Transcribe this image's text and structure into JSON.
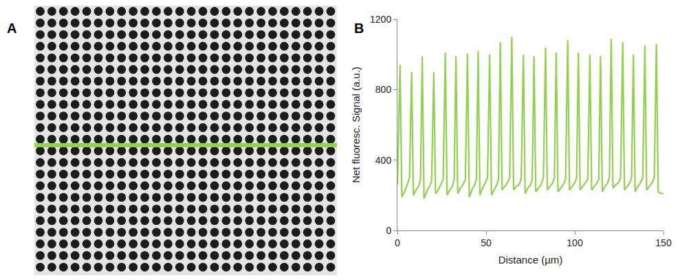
{
  "panel_labels": [
    "A",
    "B"
  ],
  "chart_data": {
    "type": "line",
    "x": [
      0,
      1.5,
      2.5,
      4,
      5.5,
      6.8,
      8,
      9,
      10.5,
      12,
      13,
      14,
      15,
      16.5,
      18,
      19.3,
      20.5,
      21.5,
      23,
      24.5,
      25.8,
      27,
      28,
      29.5,
      31,
      32,
      33,
      34,
      35.5,
      37,
      38.3,
      39.5,
      40.5,
      42,
      43.5,
      44.5,
      45.5,
      46.5,
      48,
      49.5,
      50.8,
      52,
      53,
      54.5,
      56,
      57,
      58,
      59,
      60.5,
      62,
      63.3,
      64.5,
      65.5,
      67,
      68.5,
      69.8,
      71,
      72,
      73.5,
      75,
      76,
      77,
      78,
      79.5,
      81,
      82.3,
      83.5,
      84.5,
      86,
      87.5,
      88.5,
      89.5,
      90.5,
      92,
      93.5,
      94.8,
      96,
      97,
      98.5,
      100,
      101,
      102,
      103,
      104.5,
      106,
      107.3,
      108.5,
      109.5,
      111,
      112.5,
      113.5,
      114.5,
      115.5,
      117,
      118.5,
      119.5,
      120.5,
      121.5,
      123,
      124.5,
      125.8,
      127,
      128,
      129.5,
      131,
      132,
      133,
      134,
      135.5,
      137,
      138.3,
      139.5,
      140.5,
      142,
      143.5,
      144.8,
      146,
      147,
      148.5,
      150
    ],
    "values": [
      260,
      940,
      190,
      220,
      260,
      300,
      900,
      200,
      230,
      250,
      290,
      990,
      180,
      220,
      250,
      280,
      900,
      210,
      230,
      260,
      290,
      1010,
      200,
      230,
      250,
      290,
      990,
      210,
      240,
      260,
      290,
      1005,
      190,
      230,
      260,
      290,
      1020,
      200,
      240,
      270,
      300,
      1000,
      200,
      230,
      260,
      290,
      1070,
      230,
      250,
      270,
      300,
      1100,
      230,
      250,
      260,
      290,
      1000,
      210,
      240,
      260,
      290,
      990,
      220,
      240,
      260,
      300,
      1040,
      230,
      250,
      270,
      300,
      1010,
      220,
      240,
      260,
      290,
      1080,
      230,
      250,
      270,
      300,
      1010,
      230,
      250,
      270,
      290,
      1000,
      230,
      250,
      270,
      290,
      990,
      220,
      250,
      270,
      300,
      1090,
      240,
      260,
      270,
      300,
      1070,
      230,
      250,
      270,
      300,
      1000,
      220,
      250,
      270,
      300,
      1050,
      230,
      250,
      270,
      300,
      1060,
      220,
      210,
      210
    ],
    "color": "#92d050",
    "xlabel": "Distance (µm)",
    "ylabel": "Net fluoresc. Signal (a.u.)",
    "xlim": [
      0,
      150
    ],
    "ylim": [
      0,
      1200
    ],
    "xticks": [
      0,
      50,
      100,
      150
    ],
    "yticks": [
      0,
      400,
      800,
      1200
    ],
    "grid": false
  }
}
